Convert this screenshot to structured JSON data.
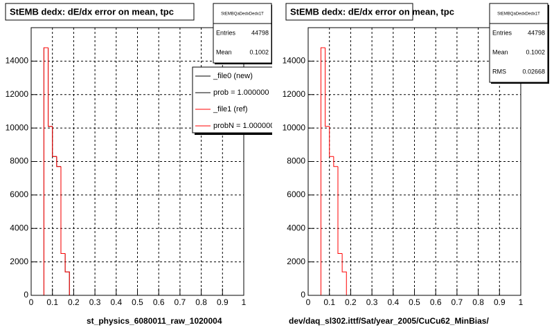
{
  "chart_data": [
    {
      "type": "histogram",
      "title": "StEMB dedx: dE/dx error on mean, tpc",
      "xlabel": "st_physics_6080011_raw_1020004",
      "bins": [
        0.06,
        0.08,
        0.1,
        0.12,
        0.14,
        0.16,
        0.18
      ],
      "series": [
        {
          "color": "#000000",
          "values": [
            14800,
            10100,
            8300,
            7700,
            2500,
            1400
          ]
        },
        {
          "color": "#ff0000",
          "values": [
            14800,
            10100,
            8300,
            7700,
            2500,
            1400
          ]
        }
      ],
      "xlim": [
        0,
        1
      ],
      "ylim": [
        0,
        16000
      ],
      "xticks": [
        0,
        0.1,
        0.2,
        0.3,
        0.4,
        0.5,
        0.6,
        0.7,
        0.8,
        0.9,
        1
      ],
      "yticks": [
        0,
        2000,
        4000,
        6000,
        8000,
        10000,
        12000,
        14000
      ],
      "grid": true,
      "stats": {
        "name": "StEMBQaDedxDedx1T",
        "rows": [
          {
            "label": "Entries",
            "value": 44798
          },
          {
            "label": "Mean",
            "value": 0.1002
          }
        ]
      },
      "legend": [
        {
          "label": "_file0 (new)",
          "color": "#000000"
        },
        {
          "label": "prob = 1.000000",
          "color": "#000000"
        },
        {
          "label": "_file1 (ref)",
          "color": "#ff0000"
        },
        {
          "label": "probN = 1.000000",
          "color": "#ff0000"
        }
      ]
    },
    {
      "type": "histogram",
      "title": "StEMB dedx: dE/dx error on mean, tpc",
      "xlabel": "dev/daq_sl302.ittf/Sat/year_2005/CuCu62_MinBias/",
      "bins": [
        0.06,
        0.08,
        0.1,
        0.12,
        0.14,
        0.16,
        0.18
      ],
      "series": [
        {
          "color": "#ff0000",
          "values": [
            14800,
            10100,
            8300,
            7700,
            2500,
            1400
          ]
        }
      ],
      "xlim": [
        0,
        1
      ],
      "ylim": [
        0,
        16000
      ],
      "xticks": [
        0,
        0.1,
        0.2,
        0.3,
        0.4,
        0.5,
        0.6,
        0.7,
        0.8,
        0.9,
        1
      ],
      "yticks": [
        0,
        2000,
        4000,
        6000,
        8000,
        10000,
        12000,
        14000
      ],
      "grid": true,
      "stats": {
        "name": "StEMBQaDedxDedx1T",
        "rows": [
          {
            "label": "Entries",
            "value": 44798
          },
          {
            "label": "Mean",
            "value": 0.1002
          },
          {
            "label": "RMS",
            "value": 0.02668
          }
        ]
      }
    }
  ]
}
